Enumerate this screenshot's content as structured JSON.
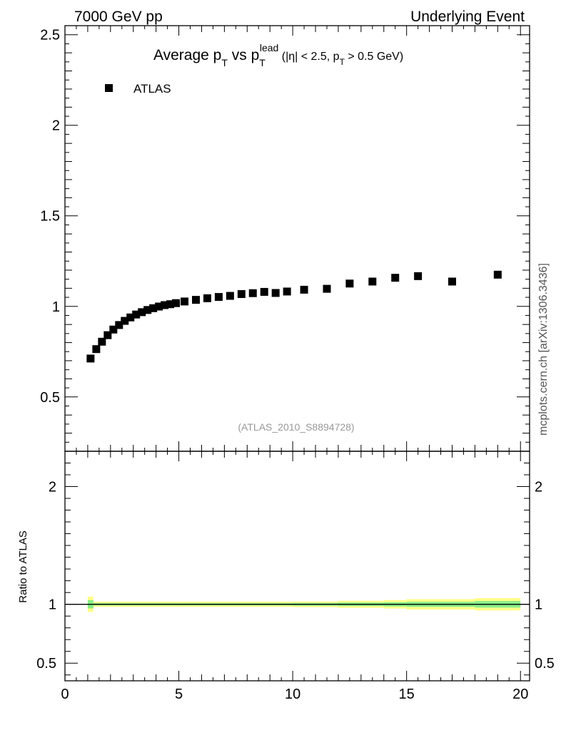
{
  "header": {
    "left": "7000 GeV pp",
    "right": "Underlying Event",
    "side": "mcplots.cern.ch [arXiv:1306.3436]"
  },
  "chart_data": [
    {
      "type": "scatter",
      "panel": "main",
      "title": {
        "prefix": "Average p",
        "sub1": "T",
        "mid": " vs p",
        "sub2": "T",
        "sup2": "lead",
        "cond_a": " (|η| < 2.5, p",
        "cond_sub": "T",
        "cond_b": " > 0.5 GeV)"
      },
      "analysis_label": "(ATLAS_2010_S8894728)",
      "legend": [
        "ATLAS"
      ],
      "legend_position": "top-left",
      "xlim": [
        0,
        20.4
      ],
      "ylim": [
        0.2,
        2.55
      ],
      "yticks": [
        0.5,
        1,
        1.5,
        2,
        2.5
      ],
      "ytick_labels": [
        "0.5",
        "1",
        "1.5",
        "2",
        "2.5"
      ],
      "series": [
        {
          "name": "ATLAS",
          "color": "#000000",
          "marker": "square",
          "x": [
            1.125,
            1.375,
            1.625,
            1.875,
            2.125,
            2.375,
            2.625,
            2.875,
            3.125,
            3.375,
            3.625,
            3.875,
            4.125,
            4.375,
            4.625,
            4.875,
            5.25,
            5.75,
            6.25,
            6.75,
            7.25,
            7.75,
            8.25,
            8.75,
            9.25,
            9.75,
            10.5,
            11.5,
            12.5,
            13.5,
            14.5,
            15.5,
            17.0,
            19.0
          ],
          "y": [
            0.712,
            0.764,
            0.805,
            0.841,
            0.872,
            0.897,
            0.92,
            0.939,
            0.955,
            0.968,
            0.98,
            0.99,
            0.999,
            1.007,
            1.012,
            1.018,
            1.027,
            1.036,
            1.045,
            1.052,
            1.058,
            1.068,
            1.073,
            1.08,
            1.074,
            1.082,
            1.092,
            1.097,
            1.126,
            1.137,
            1.158,
            1.167,
            1.137,
            1.175
          ]
        }
      ]
    },
    {
      "type": "area",
      "panel": "ratio",
      "ylabel": "Ratio to ATLAS",
      "xlim": [
        0,
        20.4
      ],
      "ylim": [
        0.35,
        2.3
      ],
      "xticks": [
        0,
        5,
        10,
        15,
        20
      ],
      "xtick_labels": [
        "0",
        "5",
        "10",
        "15",
        "20"
      ],
      "yticks": [
        0.5,
        1,
        2
      ],
      "ytick_labels": [
        "0.5",
        "1",
        "2"
      ],
      "reference_line": 1,
      "bands": [
        {
          "name": "total uncertainty",
          "color": "#ffff88",
          "x_edges": [
            1.0,
            1.25,
            5.0,
            10.0,
            12.0,
            14.0,
            15.0,
            18.0,
            20.0
          ],
          "half_widths": [
            0.065,
            0.022,
            0.022,
            0.024,
            0.03,
            0.036,
            0.044,
            0.052,
            0.055
          ]
        },
        {
          "name": "statistical uncertainty",
          "color": "#88ee88",
          "x_edges": [
            1.0,
            1.25,
            5.0,
            10.0,
            12.0,
            14.0,
            15.0,
            18.0,
            20.0
          ],
          "half_widths": [
            0.035,
            0.01,
            0.01,
            0.012,
            0.015,
            0.018,
            0.022,
            0.028,
            0.03
          ]
        }
      ]
    }
  ]
}
